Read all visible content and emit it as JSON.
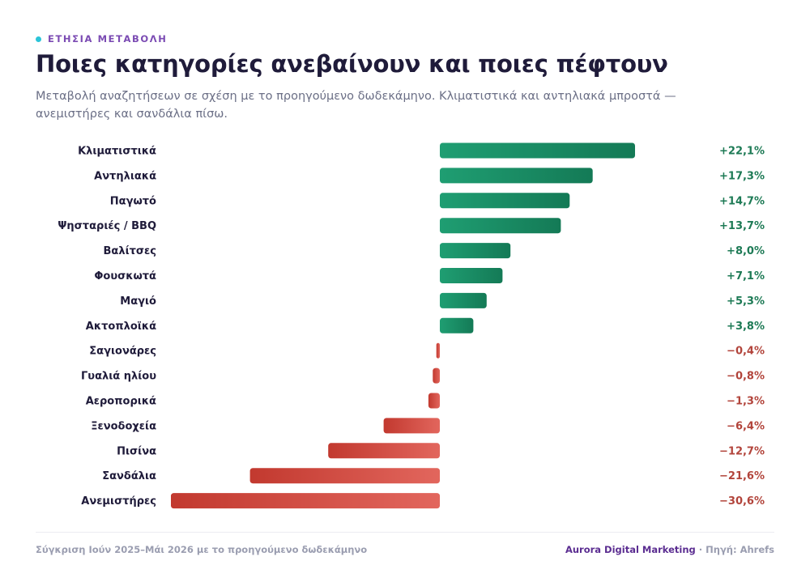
{
  "header": {
    "eyebrow": "ΕΤΗΣΙΑ ΜΕΤΑΒΟΛΗ",
    "title": "Ποιες κατηγορίες ανεβαίνουν και ποιες πέφτουν",
    "subtitle": "Μεταβολή αναζητήσεων σε σχέση με το προηγούμενο δωδεκάμηνο. Κλιματιστικά και αντηλιακά μπροστά — ανεμιστήρες και σανδάλια πίσω."
  },
  "chart_data": {
    "type": "bar",
    "orientation": "horizontal",
    "categories": [
      "Κλιματιστικά",
      "Αντηλιακά",
      "Παγωτό",
      "Ψησταριές / BBQ",
      "Βαλίτσες",
      "Φουσκωτά",
      "Μαγιό",
      "Ακτοπλοϊκά",
      "Σαγιονάρες",
      "Γυαλιά ηλίου",
      "Αεροπορικά",
      "Ξενοδοχεία",
      "Πισίνα",
      "Σανδάλια",
      "Ανεμιστήρες"
    ],
    "values": [
      22.1,
      17.3,
      14.7,
      13.7,
      8.0,
      7.1,
      5.3,
      3.8,
      -0.4,
      -0.8,
      -1.3,
      -6.4,
      -12.7,
      -21.6,
      -30.6
    ],
    "value_labels": [
      "+22,1%",
      "+17,3%",
      "+14,7%",
      "+13,7%",
      "+8,0%",
      "+7,1%",
      "+5,3%",
      "+3,8%",
      "−0,4%",
      "−0,8%",
      "−1,3%",
      "−6,4%",
      "−12,7%",
      "−21,6%",
      "−30,6%"
    ],
    "xlim": [
      -30.6,
      22.1
    ],
    "grid": false,
    "colors": {
      "positive": "#16875f",
      "positive_light": "#1f9e72",
      "negative": "#c5433a",
      "negative_light": "#e0625a",
      "positive_text": "#1d7a55",
      "negative_text": "#b2443b"
    }
  },
  "footer": {
    "left": "Σύγκριση Ιούν 2025–Μάι 2026 με το προηγούμενο δωδεκάμηνο",
    "brand": "Aurora Digital Marketing",
    "source": " · Πηγή: Ahrefs"
  }
}
